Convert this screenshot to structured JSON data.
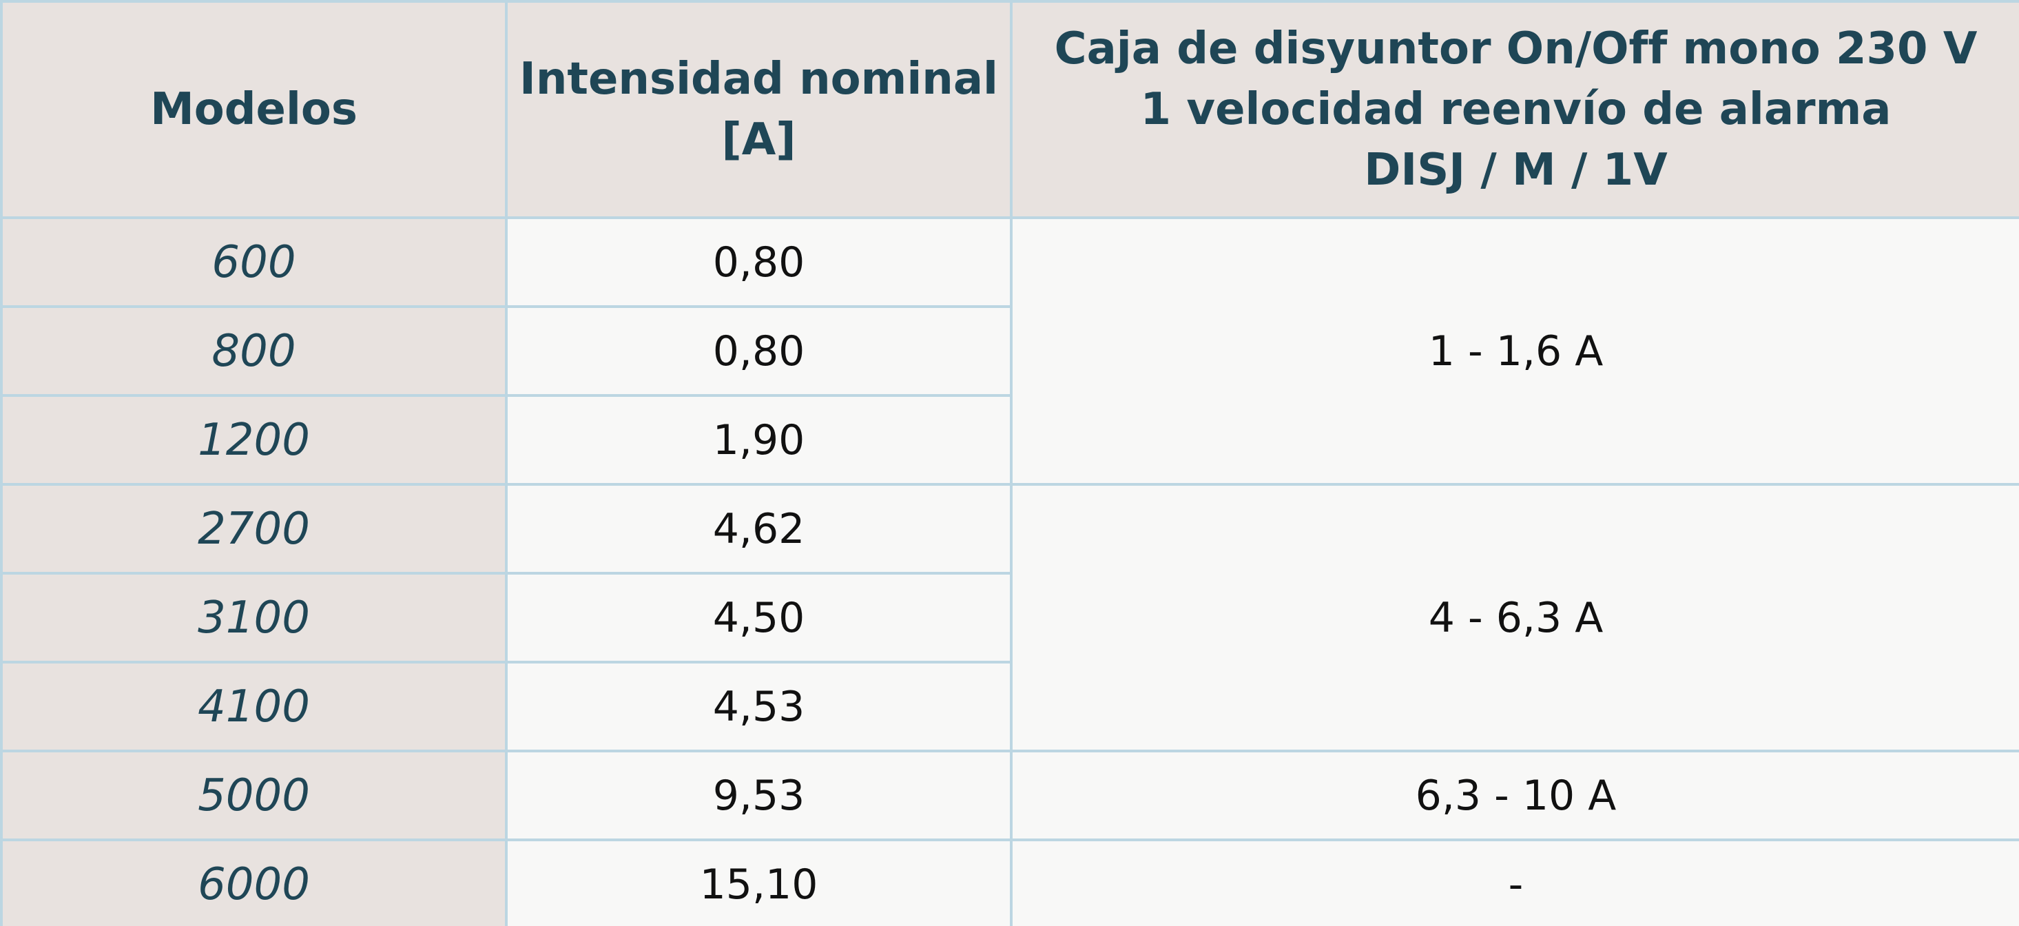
{
  "table": {
    "header": [
      [
        "Modelos"
      ],
      [
        "Intensidad nominal",
        "[A]"
      ],
      [
        "Caja de disyuntor On/Off mono 230 V",
        "1 velocidad reenvío de alarma",
        "DISJ / M / 1V"
      ]
    ],
    "rows": [
      [
        "600",
        "0,80"
      ],
      [
        "800",
        "0,80"
      ],
      [
        "1200",
        "1,90"
      ],
      [
        "2700",
        "4,62"
      ],
      [
        "3100",
        "4,50"
      ],
      [
        "4100",
        "4,53"
      ],
      [
        "5000",
        "9,53"
      ],
      [
        "6000",
        "15,10"
      ]
    ],
    "breakers": [
      "1 - 1,6 A",
      "4 - 6,3 A",
      "6,3 - 10 A",
      "-"
    ]
  }
}
